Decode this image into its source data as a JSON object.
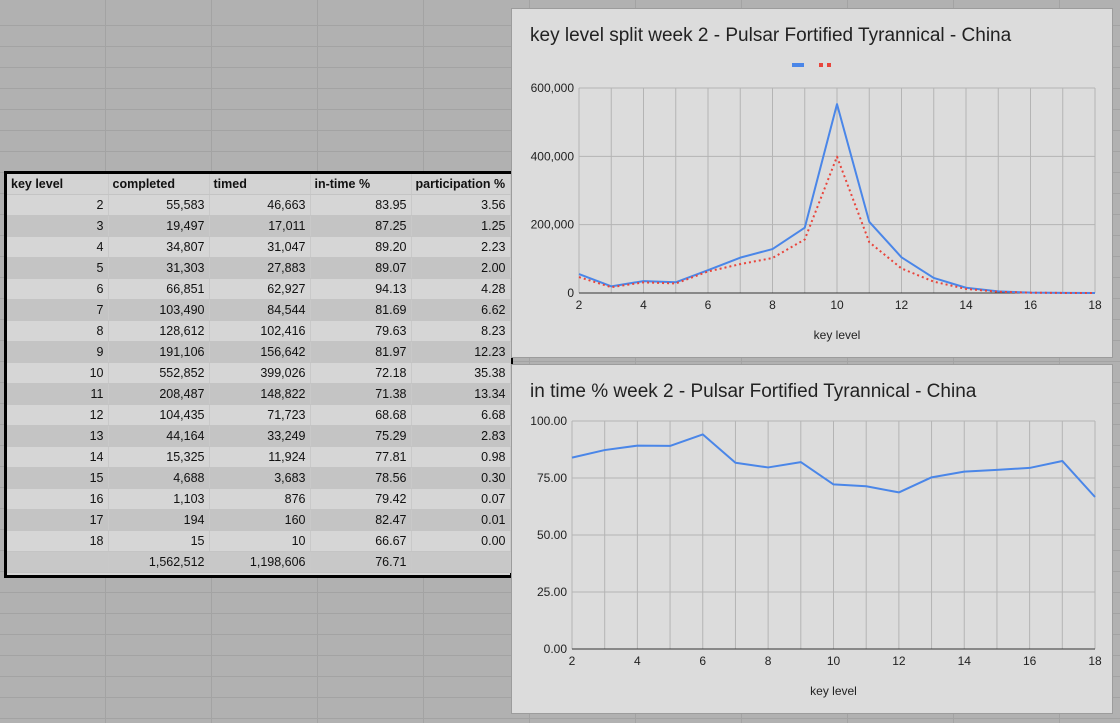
{
  "table": {
    "headers": [
      "key level",
      "completed",
      "timed",
      "in-time %",
      "participation %"
    ],
    "rows": [
      [
        "2",
        "55,583",
        "46,663",
        "83.95",
        "3.56"
      ],
      [
        "3",
        "19,497",
        "17,011",
        "87.25",
        "1.25"
      ],
      [
        "4",
        "34,807",
        "31,047",
        "89.20",
        "2.23"
      ],
      [
        "5",
        "31,303",
        "27,883",
        "89.07",
        "2.00"
      ],
      [
        "6",
        "66,851",
        "62,927",
        "94.13",
        "4.28"
      ],
      [
        "7",
        "103,490",
        "84,544",
        "81.69",
        "6.62"
      ],
      [
        "8",
        "128,612",
        "102,416",
        "79.63",
        "8.23"
      ],
      [
        "9",
        "191,106",
        "156,642",
        "81.97",
        "12.23"
      ],
      [
        "10",
        "552,852",
        "399,026",
        "72.18",
        "35.38"
      ],
      [
        "11",
        "208,487",
        "148,822",
        "71.38",
        "13.34"
      ],
      [
        "12",
        "104,435",
        "71,723",
        "68.68",
        "6.68"
      ],
      [
        "13",
        "44,164",
        "33,249",
        "75.29",
        "2.83"
      ],
      [
        "14",
        "15,325",
        "11,924",
        "77.81",
        "0.98"
      ],
      [
        "15",
        "4,688",
        "3,683",
        "78.56",
        "0.30"
      ],
      [
        "16",
        "1,103",
        "876",
        "79.42",
        "0.07"
      ],
      [
        "17",
        "194",
        "160",
        "82.47",
        "0.01"
      ],
      [
        "18",
        "15",
        "10",
        "66.67",
        "0.00"
      ]
    ],
    "total": [
      "",
      "1,562,512",
      "1,198,606",
      "76.71",
      ""
    ]
  },
  "chart_data": [
    {
      "type": "line",
      "title": "key level split week 2 - Pulsar Fortified Tyrannical - China",
      "xlabel": "key level",
      "ylabel": "",
      "x": [
        2,
        3,
        4,
        5,
        6,
        7,
        8,
        9,
        10,
        11,
        12,
        13,
        14,
        15,
        16,
        17,
        18
      ],
      "xticks": [
        "2",
        "4",
        "6",
        "8",
        "10",
        "12",
        "14",
        "16",
        "18"
      ],
      "yticks": [
        "0",
        "200,000",
        "400,000",
        "600,000"
      ],
      "xlim": [
        2,
        18
      ],
      "ylim": [
        0,
        600000
      ],
      "grid": true,
      "legend": "top",
      "series": [
        {
          "values": [
            55583,
            19497,
            34807,
            31303,
            66851,
            103490,
            128612,
            191106,
            552852,
            208487,
            104435,
            44164,
            15325,
            4688,
            1103,
            194,
            15
          ],
          "color": "#4a86e8",
          "style": "solid"
        },
        {
          "values": [
            46663,
            17011,
            31047,
            27883,
            62927,
            84544,
            102416,
            156642,
            399026,
            148822,
            71723,
            33249,
            11924,
            3683,
            876,
            160,
            10
          ],
          "color": "#e8453c",
          "style": "dotted"
        }
      ]
    },
    {
      "type": "line",
      "title": "in time % week 2 - Pulsar Fortified Tyrannical - China",
      "xlabel": "key level",
      "ylabel": "",
      "x": [
        2,
        3,
        4,
        5,
        6,
        7,
        8,
        9,
        10,
        11,
        12,
        13,
        14,
        15,
        16,
        17,
        18
      ],
      "xticks": [
        "2",
        "4",
        "6",
        "8",
        "10",
        "12",
        "14",
        "16",
        "18"
      ],
      "yticks": [
        "0.00",
        "25.00",
        "50.00",
        "75.00",
        "100.00"
      ],
      "xlim": [
        2,
        18
      ],
      "ylim": [
        0,
        100
      ],
      "grid": true,
      "series": [
        {
          "values": [
            83.95,
            87.25,
            89.2,
            89.07,
            94.13,
            81.69,
            79.63,
            81.97,
            72.18,
            71.38,
            68.68,
            75.29,
            77.81,
            78.56,
            79.42,
            82.47,
            66.67
          ],
          "color": "#4a86e8",
          "style": "solid"
        }
      ]
    }
  ]
}
